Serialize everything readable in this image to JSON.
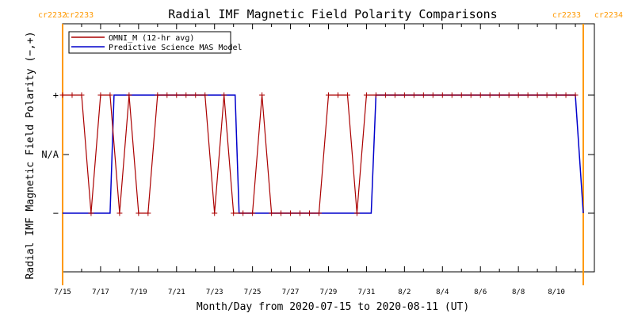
{
  "chart_data": {
    "type": "line",
    "title": "Radial IMF Magnetic Field Polarity Comparisons",
    "xlabel": "Month/Day from 2020-07-15 to 2020-08-11 (UT)",
    "ylabel": "Radial IMF Magnetic Field Polarity (−,+)",
    "x_ticks": [
      "7/15",
      "7/17",
      "7/19",
      "7/21",
      "7/23",
      "7/25",
      "7/27",
      "7/29",
      "7/31",
      "8/2",
      "8/4",
      "8/6",
      "8/8",
      "8/10"
    ],
    "y_ticks": [
      "+",
      "N/A",
      "−"
    ],
    "xlim": [
      "2020-07-15",
      "2020-08-12"
    ],
    "carrington_markers": [
      {
        "left_label": "cr2232",
        "right_label": "cr2233",
        "date": "2020-07-15"
      },
      {
        "left_label": "cr2233",
        "right_label": "cr2234",
        "date": "2020-08-11 10:00"
      }
    ],
    "legend": {
      "position": "top-left",
      "entries": [
        "OMNI_M (12-hr avg)",
        "Predictive Science MAS Model"
      ]
    },
    "colors": {
      "omni": "#aa0000",
      "model": "#0000cc",
      "carrington": "#ff9900",
      "axis": "#000000"
    },
    "series": [
      {
        "name": "OMNI_M (12-hr avg)",
        "marker": "plus",
        "x": [
          "2020-07-15 00:00",
          "2020-07-15 12:00",
          "2020-07-16 00:00",
          "2020-07-16 12:00",
          "2020-07-17 00:00",
          "2020-07-17 12:00",
          "2020-07-18 00:00",
          "2020-07-18 12:00",
          "2020-07-19 00:00",
          "2020-07-19 12:00",
          "2020-07-20 00:00",
          "2020-07-20 12:00",
          "2020-07-21 00:00",
          "2020-07-21 12:00",
          "2020-07-22 00:00",
          "2020-07-22 12:00",
          "2020-07-23 00:00",
          "2020-07-23 12:00",
          "2020-07-24 00:00",
          "2020-07-24 12:00",
          "2020-07-25 00:00",
          "2020-07-25 12:00",
          "2020-07-26 00:00",
          "2020-07-26 12:00",
          "2020-07-27 00:00",
          "2020-07-27 12:00",
          "2020-07-28 00:00",
          "2020-07-28 12:00",
          "2020-07-29 00:00",
          "2020-07-29 12:00",
          "2020-07-30 00:00",
          "2020-07-30 12:00",
          "2020-07-31 00:00",
          "2020-07-31 12:00",
          "2020-08-01 00:00",
          "2020-08-01 12:00",
          "2020-08-02 00:00",
          "2020-08-02 12:00",
          "2020-08-03 00:00",
          "2020-08-03 12:00",
          "2020-08-04 00:00",
          "2020-08-04 12:00",
          "2020-08-05 00:00",
          "2020-08-05 12:00",
          "2020-08-06 00:00",
          "2020-08-06 12:00",
          "2020-08-07 00:00",
          "2020-08-07 12:00",
          "2020-08-08 00:00",
          "2020-08-08 12:00",
          "2020-08-09 00:00",
          "2020-08-09 12:00",
          "2020-08-10 00:00",
          "2020-08-10 12:00",
          "2020-08-11 00:00"
        ],
        "y": [
          1,
          1,
          1,
          -1,
          1,
          1,
          -1,
          1,
          -1,
          -1,
          1,
          1,
          1,
          1,
          1,
          1,
          -1,
          1,
          -1,
          -1,
          -1,
          1,
          -1,
          -1,
          -1,
          -1,
          -1,
          -1,
          1,
          1,
          1,
          -1,
          1,
          1,
          1,
          1,
          1,
          1,
          1,
          1,
          1,
          1,
          1,
          1,
          1,
          1,
          1,
          1,
          1,
          1,
          1,
          1,
          1,
          1,
          1
        ]
      },
      {
        "name": "Predictive Science MAS Model",
        "marker": "none",
        "x": [
          "2020-07-15 00:00",
          "2020-07-17 12:00",
          "2020-07-17 17:00",
          "2020-07-19 00:00",
          "2020-07-24 02:00",
          "2020-07-24 07:00",
          "2020-07-31 06:00",
          "2020-07-31 12:00",
          "2020-08-11 00:00",
          "2020-08-11 10:00"
        ],
        "y": [
          -1,
          -1,
          1,
          1,
          1,
          -1,
          -1,
          1,
          1,
          -1
        ]
      }
    ]
  }
}
